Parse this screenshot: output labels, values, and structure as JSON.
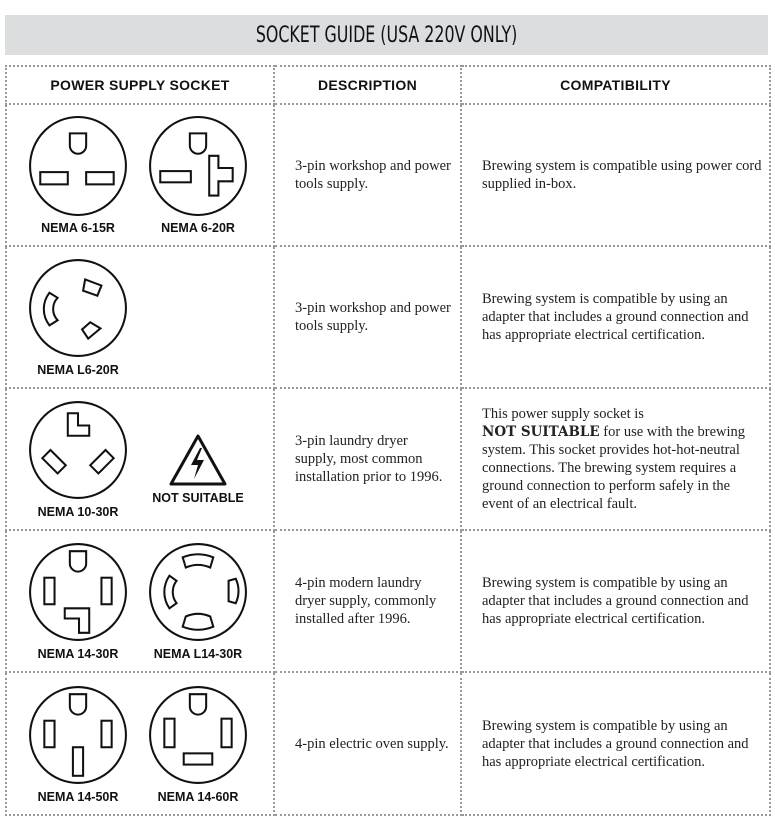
{
  "title": "SOCKET GUIDE (USA 220V ONLY)",
  "headers": {
    "socket": "POWER SUPPLY SOCKET",
    "description": "DESCRIPTION",
    "compatibility": "COMPATIBILITY"
  },
  "rows": [
    {
      "sockets": [
        "NEMA 6-15R",
        "NEMA 6-20R"
      ],
      "description": "3-pin workshop and power tools supply.",
      "compatibility": "Brewing system is compatible using power cord supplied in-box."
    },
    {
      "sockets": [
        "NEMA L6-20R"
      ],
      "description": "3-pin workshop and power tools supply.",
      "compatibility": "Brewing system is compatible by using an adapter that includes a ground connection and has appropriate electrical certification."
    },
    {
      "sockets": [
        "NEMA 10-30R"
      ],
      "warning": "NOT SUITABLE",
      "description": "3-pin laundry dryer supply, most common installation prior to 1996.",
      "compatibility_pre": "This power supply socket is",
      "compatibility_bold": "NOT SUITABLE",
      "compatibility_post": "for use with the brewing system. This socket provides hot-hot-neutral connections. The brewing system requires a ground connection to perform safely in the event of an electrical fault."
    },
    {
      "sockets": [
        "NEMA 14-30R",
        "NEMA L14-30R"
      ],
      "description": "4-pin modern laundry dryer supply, commonly installed after 1996.",
      "compatibility": "Brewing system is compatible by using an adapter that includes a ground connection and has appropriate electrical certification."
    },
    {
      "sockets": [
        "NEMA 14-50R",
        "NEMA 14-60R"
      ],
      "description": "4-pin electric oven supply.",
      "compatibility": "Brewing system is compatible by using an adapter that includes a ground connection and has appropriate electrical certification."
    }
  ]
}
